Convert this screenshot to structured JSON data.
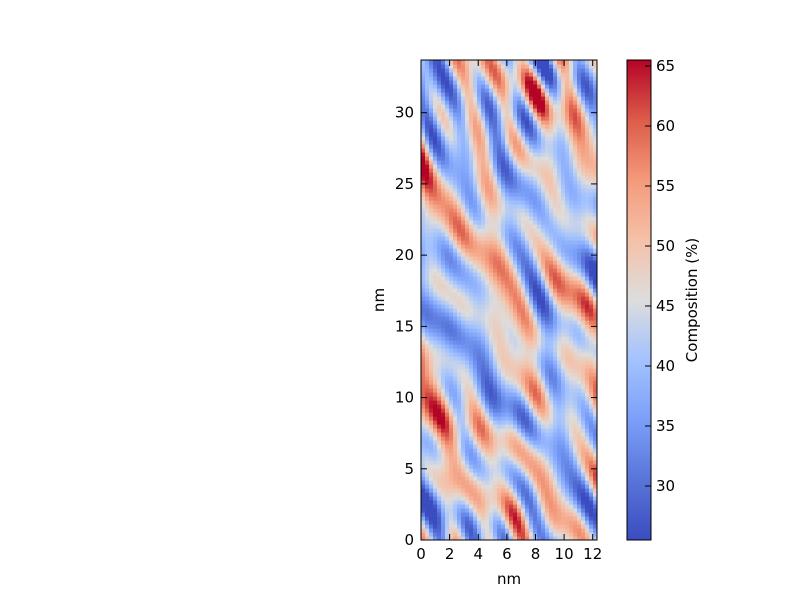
{
  "chart_data": {
    "type": "heatmap",
    "title": "",
    "xlabel": "nm",
    "ylabel": "nm",
    "xlim": [
      0,
      12.3
    ],
    "ylim": [
      0,
      33.7
    ],
    "xticks": [
      "0",
      "2",
      "4",
      "6",
      "8",
      "10",
      "12"
    ],
    "yticks": [
      "0",
      "5",
      "10",
      "15",
      "20",
      "25",
      "30"
    ],
    "colorbar": {
      "label": "Composition (%)",
      "range": [
        25.5,
        65.5
      ],
      "ticks": [
        "30",
        "35",
        "40",
        "45",
        "50",
        "55",
        "60",
        "65"
      ],
      "colormap": "coolwarm",
      "colors": {
        "low": "#3b4cc0",
        "mid": "#dddddd",
        "high": "#b40426"
      }
    },
    "grid": false
  }
}
